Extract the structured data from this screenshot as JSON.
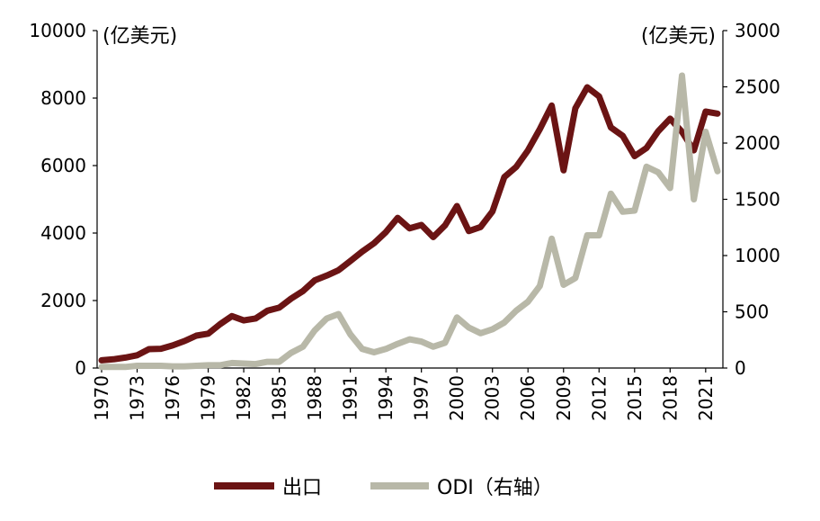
{
  "chart_data": {
    "type": "line",
    "y_left_unit": "(亿美元)",
    "y_right_unit": "(亿美元)",
    "x": [
      1970,
      1971,
      1972,
      1973,
      1974,
      1975,
      1976,
      1977,
      1978,
      1979,
      1980,
      1981,
      1982,
      1983,
      1984,
      1985,
      1986,
      1987,
      1988,
      1989,
      1990,
      1991,
      1992,
      1993,
      1994,
      1995,
      1996,
      1997,
      1998,
      1999,
      2000,
      2001,
      2002,
      2003,
      2004,
      2005,
      2006,
      2007,
      2008,
      2009,
      2010,
      2011,
      2012,
      2013,
      2014,
      2015,
      2016,
      2017,
      2018,
      2019,
      2020,
      2021,
      2022
    ],
    "x_ticks": [
      "1970",
      "1973",
      "1976",
      "1979",
      "1982",
      "1985",
      "1988",
      "1991",
      "1994",
      "1997",
      "2000",
      "2003",
      "2006",
      "2009",
      "2012",
      "2015",
      "2018",
      "2021"
    ],
    "ylim_left": [
      0,
      10000
    ],
    "ylim_right": [
      0,
      3000
    ],
    "y_left_ticks": [
      "0",
      "2000",
      "4000",
      "6000",
      "8000",
      "10000"
    ],
    "y_right_ticks": [
      "0",
      "500",
      "1000",
      "1500",
      "2000",
      "2500",
      "3000"
    ],
    "grid": false,
    "legend_position": "bottom",
    "series": [
      {
        "name": "出口",
        "axis": "left",
        "color": "#6b1414",
        "values": [
          230,
          260,
          310,
          380,
          560,
          570,
          670,
          800,
          960,
          1020,
          1300,
          1540,
          1410,
          1470,
          1700,
          1790,
          2060,
          2280,
          2600,
          2740,
          2900,
          3170,
          3450,
          3700,
          4030,
          4450,
          4140,
          4240,
          3880,
          4230,
          4800,
          4060,
          4180,
          4640,
          5660,
          5960,
          6450,
          7080,
          7780,
          5860,
          7700,
          8320,
          8050,
          7130,
          6880,
          6280,
          6520,
          7020,
          7390,
          7000,
          6450,
          7600,
          7540
        ]
      },
      {
        "name": "ODI（右轴）",
        "axis": "right",
        "color": "#b8b8a8",
        "values": [
          10,
          10,
          10,
          20,
          20,
          20,
          15,
          15,
          20,
          25,
          25,
          45,
          40,
          35,
          55,
          55,
          135,
          190,
          335,
          440,
          480,
          300,
          170,
          140,
          170,
          215,
          255,
          235,
          190,
          225,
          450,
          360,
          310,
          345,
          405,
          510,
          590,
          730,
          1150,
          740,
          800,
          1180,
          1180,
          1550,
          1390,
          1400,
          1790,
          1740,
          1600,
          2600,
          1500,
          2100,
          1750
        ]
      }
    ]
  }
}
